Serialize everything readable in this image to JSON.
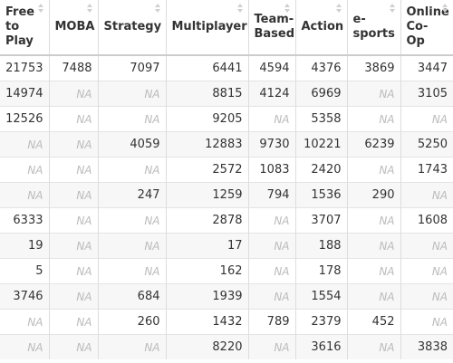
{
  "table": {
    "columns": [
      {
        "lines": [
          "Free",
          "to",
          "Play"
        ]
      },
      {
        "lines": [
          "MOBA"
        ]
      },
      {
        "lines": [
          "Strategy"
        ]
      },
      {
        "lines": [
          "Multiplayer"
        ]
      },
      {
        "lines": [
          "Team-",
          "Based"
        ]
      },
      {
        "lines": [
          "Action"
        ]
      },
      {
        "lines": [
          "e-",
          "sports"
        ]
      },
      {
        "lines": [
          "Online",
          "Co-Op"
        ]
      }
    ],
    "rows": [
      [
        "21753",
        "7488",
        "7097",
        "6441",
        "4594",
        "4376",
        "3869",
        "3447"
      ],
      [
        "14974",
        "NA",
        "NA",
        "8815",
        "4124",
        "6969",
        "NA",
        "3105"
      ],
      [
        "12526",
        "NA",
        "NA",
        "9205",
        "NA",
        "5358",
        "NA",
        "NA"
      ],
      [
        "NA",
        "NA",
        "4059",
        "12883",
        "9730",
        "10221",
        "6239",
        "5250"
      ],
      [
        "NA",
        "NA",
        "NA",
        "2572",
        "1083",
        "2420",
        "NA",
        "1743"
      ],
      [
        "NA",
        "NA",
        "247",
        "1259",
        "794",
        "1536",
        "290",
        "NA"
      ],
      [
        "6333",
        "NA",
        "NA",
        "2878",
        "NA",
        "3707",
        "NA",
        "1608"
      ],
      [
        "19",
        "NA",
        "NA",
        "17",
        "NA",
        "188",
        "NA",
        "NA"
      ],
      [
        "5",
        "NA",
        "NA",
        "162",
        "NA",
        "178",
        "NA",
        "NA"
      ],
      [
        "3746",
        "NA",
        "684",
        "1939",
        "NA",
        "1554",
        "NA",
        "NA"
      ],
      [
        "NA",
        "NA",
        "260",
        "1432",
        "789",
        "2379",
        "452",
        "NA"
      ],
      [
        "NA",
        "NA",
        "NA",
        "8220",
        "NA",
        "3616",
        "NA",
        "3838"
      ]
    ]
  }
}
